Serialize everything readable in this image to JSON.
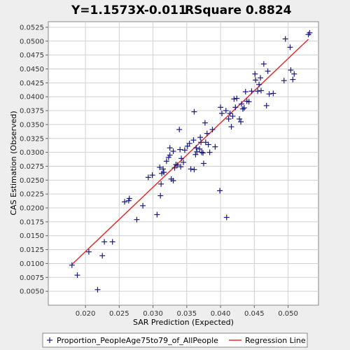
{
  "chart_data": {
    "type": "scatter",
    "title_equation": "Y=1.1573X-0.011",
    "title_rsquare": "RSquare 0.8824",
    "xlabel": "SAR Prediction (Expected)",
    "ylabel": "CAS Estimation (Observed)",
    "xlim": [
      0.0145,
      0.0545
    ],
    "ylim": [
      0.0025,
      0.0535
    ],
    "x_ticks": [
      "0.020",
      "0.025",
      "0.030",
      "0.035",
      "0.040",
      "0.045",
      "0.050"
    ],
    "x_tick_values": [
      0.02,
      0.025,
      0.03,
      0.035,
      0.04,
      0.045,
      0.05
    ],
    "y_ticks": [
      "0.0050",
      "0.0075",
      "0.0100",
      "0.0125",
      "0.0150",
      "0.0175",
      "0.0200",
      "0.0225",
      "0.0250",
      "0.0275",
      "0.0300",
      "0.0325",
      "0.0350",
      "0.0375",
      "0.0400",
      "0.0425",
      "0.0450",
      "0.0475",
      "0.0500",
      "0.0525"
    ],
    "y_tick_values": [
      0.005,
      0.0075,
      0.01,
      0.0125,
      0.015,
      0.0175,
      0.02,
      0.0225,
      0.025,
      0.0275,
      0.03,
      0.0325,
      0.035,
      0.0375,
      0.04,
      0.0425,
      0.045,
      0.0475,
      0.05,
      0.0525
    ],
    "grid": true,
    "legend_position": "bottom",
    "series": [
      {
        "name": "Proportion_PeopleAge75to79_of_AllPeople",
        "marker": "plus",
        "color": "#1a1a80",
        "points": [
          [
            0.018,
            0.0097
          ],
          [
            0.0188,
            0.0079
          ],
          [
            0.0205,
            0.0121
          ],
          [
            0.0218,
            0.0053
          ],
          [
            0.0225,
            0.0114
          ],
          [
            0.0228,
            0.0139
          ],
          [
            0.024,
            0.0139
          ],
          [
            0.0258,
            0.0211
          ],
          [
            0.0264,
            0.0213
          ],
          [
            0.0265,
            0.0217
          ],
          [
            0.0276,
            0.0179
          ],
          [
            0.0285,
            0.0204
          ],
          [
            0.0293,
            0.0255
          ],
          [
            0.0299,
            0.0259
          ],
          [
            0.0306,
            0.0188
          ],
          [
            0.031,
            0.0273
          ],
          [
            0.0311,
            0.0222
          ],
          [
            0.0312,
            0.0243
          ],
          [
            0.0313,
            0.0262
          ],
          [
            0.0315,
            0.027
          ],
          [
            0.0316,
            0.0264
          ],
          [
            0.032,
            0.0284
          ],
          [
            0.0323,
            0.0291
          ],
          [
            0.0325,
            0.0308
          ],
          [
            0.0325,
            0.0295
          ],
          [
            0.0327,
            0.0252
          ],
          [
            0.033,
            0.0249
          ],
          [
            0.033,
            0.0302
          ],
          [
            0.0332,
            0.0272
          ],
          [
            0.0334,
            0.0278
          ],
          [
            0.0336,
            0.0277
          ],
          [
            0.0339,
            0.0341
          ],
          [
            0.034,
            0.0305
          ],
          [
            0.0341,
            0.0274
          ],
          [
            0.0342,
            0.0289
          ],
          [
            0.0345,
            0.0282
          ],
          [
            0.0347,
            0.0304
          ],
          [
            0.0351,
            0.0311
          ],
          [
            0.0354,
            0.0316
          ],
          [
            0.0356,
            0.027
          ],
          [
            0.036,
            0.0322
          ],
          [
            0.0361,
            0.0373
          ],
          [
            0.0361,
            0.0269
          ],
          [
            0.0363,
            0.0296
          ],
          [
            0.0364,
            0.0308
          ],
          [
            0.0365,
            0.0301
          ],
          [
            0.0369,
            0.0306
          ],
          [
            0.037,
            0.0327
          ],
          [
            0.0371,
            0.0318
          ],
          [
            0.0372,
            0.03
          ],
          [
            0.0374,
            0.0299
          ],
          [
            0.0375,
            0.028
          ],
          [
            0.0377,
            0.0353
          ],
          [
            0.0378,
            0.0318
          ],
          [
            0.038,
            0.0334
          ],
          [
            0.0382,
            0.0314
          ],
          [
            0.0384,
            0.03
          ],
          [
            0.0388,
            0.0341
          ],
          [
            0.0392,
            0.031
          ],
          [
            0.0399,
            0.0231
          ],
          [
            0.04,
            0.0381
          ],
          [
            0.0402,
            0.037
          ],
          [
            0.0408,
            0.0375
          ],
          [
            0.0409,
            0.0183
          ],
          [
            0.0412,
            0.036
          ],
          [
            0.0414,
            0.037
          ],
          [
            0.0416,
            0.0346
          ],
          [
            0.0418,
            0.0365
          ],
          [
            0.042,
            0.0396
          ],
          [
            0.0422,
            0.0381
          ],
          [
            0.0424,
            0.0397
          ],
          [
            0.0428,
            0.036
          ],
          [
            0.043,
            0.0355
          ],
          [
            0.0431,
            0.0387
          ],
          [
            0.0433,
            0.0378
          ],
          [
            0.0435,
            0.038
          ],
          [
            0.0437,
            0.0409
          ],
          [
            0.0439,
            0.0392
          ],
          [
            0.0442,
            0.0391
          ],
          [
            0.0446,
            0.041
          ],
          [
            0.0451,
            0.0441
          ],
          [
            0.0452,
            0.043
          ],
          [
            0.0455,
            0.041
          ],
          [
            0.0457,
            0.0422
          ],
          [
            0.0459,
            0.0434
          ],
          [
            0.046,
            0.0411
          ],
          [
            0.0464,
            0.0459
          ],
          [
            0.0468,
            0.0384
          ],
          [
            0.047,
            0.0446
          ],
          [
            0.0472,
            0.0405
          ],
          [
            0.0478,
            0.0406
          ],
          [
            0.0494,
            0.0429
          ],
          [
            0.0496,
            0.0504
          ],
          [
            0.0503,
            0.0489
          ],
          [
            0.0504,
            0.0448
          ],
          [
            0.0507,
            0.0431
          ],
          [
            0.0509,
            0.0441
          ],
          [
            0.053,
            0.0512
          ],
          [
            0.0532,
            0.0515
          ]
        ]
      },
      {
        "name": "Regression Line",
        "type": "line",
        "color": "#e03030",
        "slope": 1.1573,
        "intercept": -0.011,
        "x_range": [
          0.018,
          0.053
        ]
      }
    ]
  }
}
